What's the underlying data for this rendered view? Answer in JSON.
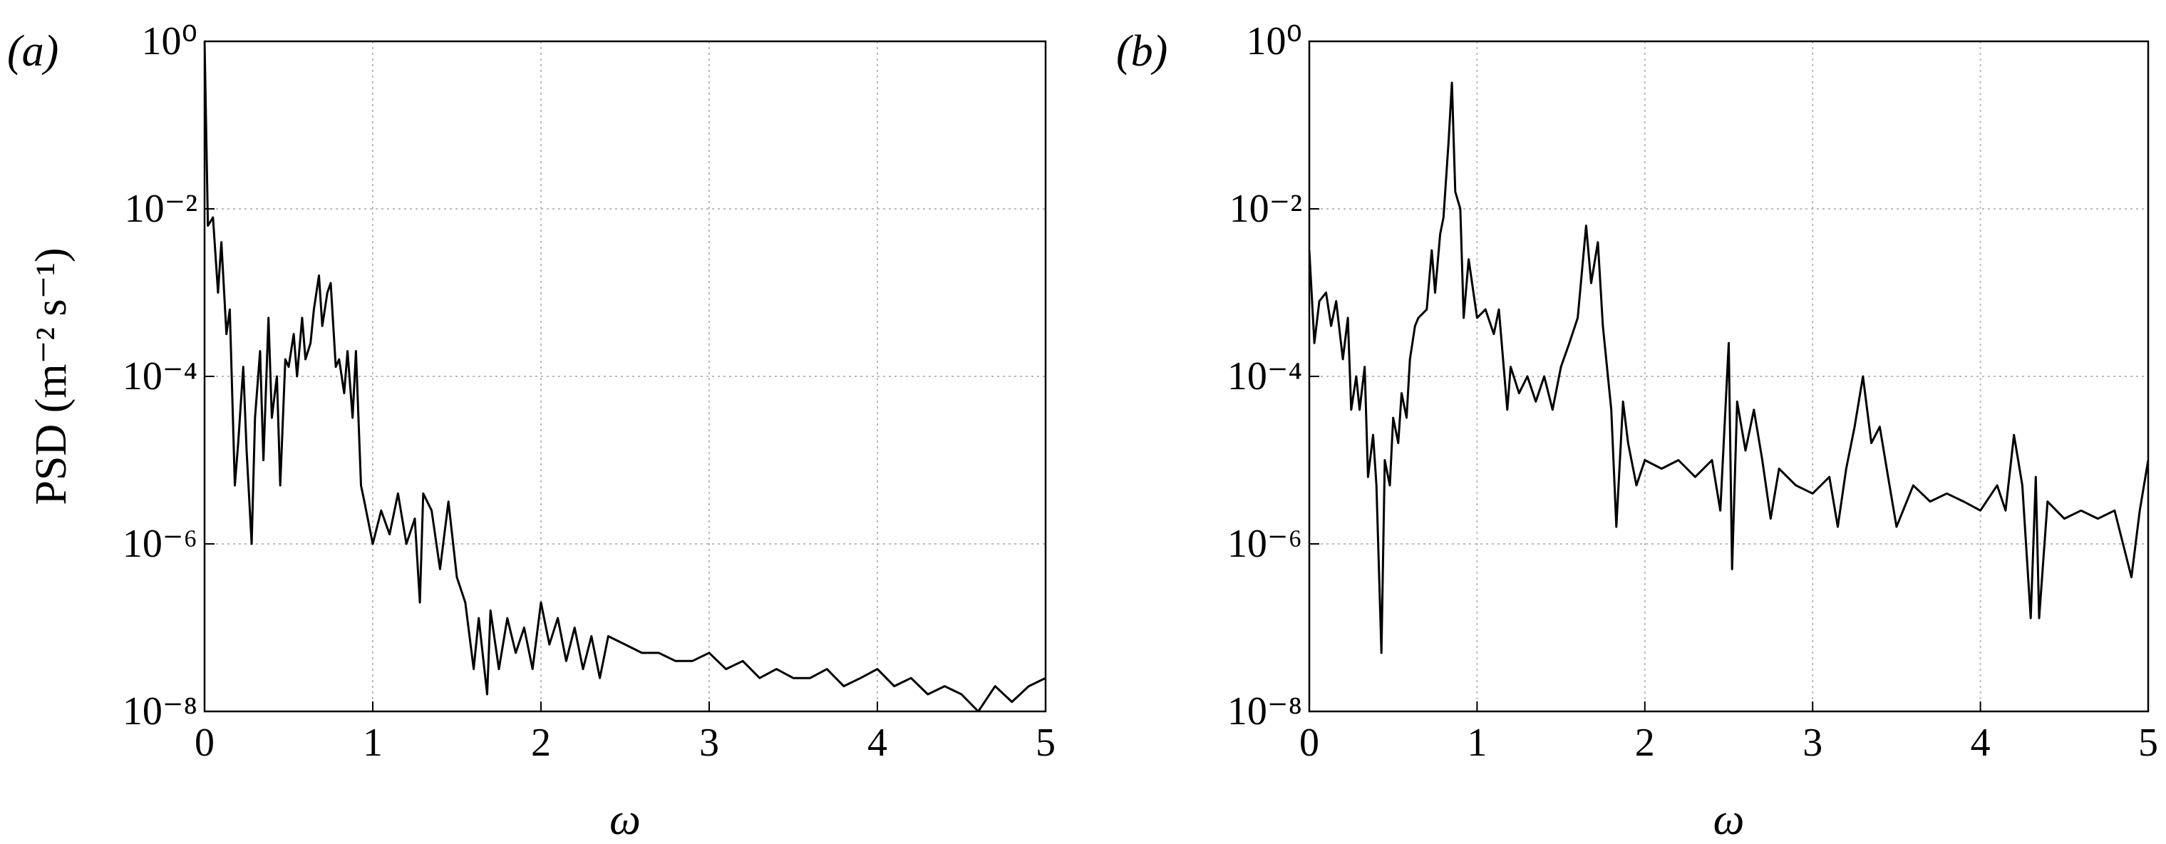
{
  "chart_data": [
    {
      "type": "line",
      "label": "(a)",
      "xlabel": "ω",
      "ylabel": "PSD (m⁻² s⁻¹)",
      "yscale": "log",
      "grid": true,
      "color": "#000000",
      "xlim": [
        0,
        5
      ],
      "xticks": [
        0,
        1,
        2,
        3,
        4,
        5
      ],
      "ylim": [
        1e-08,
        1
      ],
      "yticks": [
        {
          "value": 1e-08,
          "label": "10⁻⁸"
        },
        {
          "value": 1e-06,
          "label": "10⁻⁶"
        },
        {
          "value": 0.0001,
          "label": "10⁻⁴"
        },
        {
          "value": 0.01,
          "label": "10⁻²"
        },
        {
          "value": 1,
          "label": "10⁰"
        }
      ],
      "x": [
        0,
        0.02,
        0.05,
        0.08,
        0.1,
        0.13,
        0.15,
        0.18,
        0.2,
        0.23,
        0.25,
        0.28,
        0.3,
        0.33,
        0.35,
        0.38,
        0.4,
        0.43,
        0.45,
        0.48,
        0.5,
        0.53,
        0.55,
        0.58,
        0.6,
        0.63,
        0.65,
        0.68,
        0.7,
        0.73,
        0.75,
        0.78,
        0.8,
        0.83,
        0.85,
        0.88,
        0.9,
        0.93,
        0.95,
        1.0,
        1.05,
        1.1,
        1.15,
        1.2,
        1.25,
        1.28,
        1.3,
        1.35,
        1.4,
        1.45,
        1.5,
        1.55,
        1.6,
        1.63,
        1.68,
        1.7,
        1.75,
        1.8,
        1.85,
        1.9,
        1.95,
        2.0,
        2.05,
        2.1,
        2.15,
        2.2,
        2.25,
        2.3,
        2.35,
        2.4,
        2.5,
        2.6,
        2.7,
        2.8,
        2.9,
        3.0,
        3.1,
        3.2,
        3.3,
        3.4,
        3.5,
        3.6,
        3.7,
        3.8,
        3.9,
        4.0,
        4.1,
        4.2,
        4.3,
        4.4,
        4.5,
        4.6,
        4.7,
        4.8,
        4.9,
        5.0
      ],
      "values": [
        1,
        0.0063,
        0.0079,
        0.001,
        0.004,
        0.00032,
        0.00063,
        5e-06,
        1.6e-05,
        0.00013,
        1.3e-05,
        1e-06,
        3.2e-05,
        0.0002,
        1e-05,
        0.0005,
        3.2e-05,
        0.0001,
        5e-06,
        0.00016,
        0.00013,
        0.00032,
        0.0001,
        0.0005,
        0.00016,
        0.00025,
        0.00063,
        0.0016,
        0.0004,
        0.001,
        0.0013,
        0.00013,
        0.00016,
        6.3e-05,
        0.0002,
        3.2e-05,
        0.0002,
        5e-06,
        3.2e-06,
        1e-06,
        2.5e-06,
        1.3e-06,
        4e-06,
        1e-06,
        2e-06,
        2e-07,
        4e-06,
        2.5e-06,
        5e-07,
        3.2e-06,
        4e-07,
        2e-07,
        3.2e-08,
        1.3e-07,
        1.6e-08,
        1.6e-07,
        3.2e-08,
        1.3e-07,
        5e-08,
        1e-07,
        3.2e-08,
        2e-07,
        6.3e-08,
        1.3e-07,
        4e-08,
        1e-07,
        3.2e-08,
        7.9e-08,
        2.5e-08,
        7.9e-08,
        6.3e-08,
        5e-08,
        5e-08,
        4e-08,
        4e-08,
        5e-08,
        3.2e-08,
        4e-08,
        2.5e-08,
        3.2e-08,
        2.5e-08,
        2.5e-08,
        3.2e-08,
        2e-08,
        2.5e-08,
        3.2e-08,
        2e-08,
        2.5e-08,
        1.6e-08,
        2e-08,
        1.6e-08,
        1e-08,
        2e-08,
        1.3e-08,
        2e-08,
        2.5e-08
      ]
    },
    {
      "type": "line",
      "label": "(b)",
      "xlabel": "ω",
      "yscale": "log",
      "grid": true,
      "color": "#000000",
      "xlim": [
        0,
        5
      ],
      "xticks": [
        0,
        1,
        2,
        3,
        4,
        5
      ],
      "ylim": [
        1e-08,
        1
      ],
      "yticks": [
        {
          "value": 1e-08,
          "label": "10⁻⁸"
        },
        {
          "value": 1e-06,
          "label": "10⁻⁶"
        },
        {
          "value": 0.0001,
          "label": "10⁻⁴"
        },
        {
          "value": 0.01,
          "label": "10⁻²"
        },
        {
          "value": 1,
          "label": "10⁰"
        }
      ],
      "x": [
        0,
        0.03,
        0.06,
        0.1,
        0.13,
        0.16,
        0.2,
        0.23,
        0.25,
        0.28,
        0.3,
        0.33,
        0.35,
        0.38,
        0.4,
        0.43,
        0.45,
        0.48,
        0.5,
        0.53,
        0.55,
        0.58,
        0.6,
        0.63,
        0.65,
        0.7,
        0.73,
        0.75,
        0.78,
        0.8,
        0.83,
        0.85,
        0.87,
        0.9,
        0.92,
        0.95,
        1.0,
        1.05,
        1.1,
        1.13,
        1.18,
        1.2,
        1.25,
        1.3,
        1.35,
        1.4,
        1.45,
        1.5,
        1.55,
        1.6,
        1.65,
        1.68,
        1.72,
        1.75,
        1.8,
        1.83,
        1.87,
        1.9,
        1.95,
        2.0,
        2.1,
        2.2,
        2.3,
        2.4,
        2.45,
        2.5,
        2.52,
        2.55,
        2.6,
        2.65,
        2.7,
        2.75,
        2.8,
        2.9,
        3.0,
        3.1,
        3.15,
        3.2,
        3.25,
        3.3,
        3.35,
        3.4,
        3.45,
        3.5,
        3.6,
        3.7,
        3.8,
        3.9,
        4.0,
        4.1,
        4.15,
        4.2,
        4.25,
        4.3,
        4.33,
        4.35,
        4.4,
        4.5,
        4.6,
        4.7,
        4.8,
        4.9,
        4.95,
        5.0
      ],
      "values": [
        0.0032,
        0.00025,
        0.00079,
        0.001,
        0.0004,
        0.00079,
        0.00016,
        0.0005,
        4e-05,
        0.0001,
        4e-05,
        0.00013,
        6.3e-06,
        2e-05,
        5e-06,
        5e-08,
        1e-05,
        5e-06,
        3.2e-05,
        1.6e-05,
        6.3e-05,
        3.2e-05,
        0.00016,
        0.0004,
        0.0005,
        0.00063,
        0.0032,
        0.001,
        0.005,
        0.0079,
        0.063,
        0.32,
        0.016,
        0.01,
        0.0005,
        0.0025,
        0.0005,
        0.00063,
        0.00032,
        0.00063,
        4e-05,
        0.00013,
        6.3e-05,
        0.0001,
        5e-05,
        0.0001,
        4e-05,
        0.00013,
        0.00025,
        0.0005,
        0.0063,
        0.0013,
        0.004,
        0.0004,
        4e-05,
        1.6e-06,
        5e-05,
        1.6e-05,
        5e-06,
        1e-05,
        7.9e-06,
        1e-05,
        6.3e-06,
        1e-05,
        2.5e-06,
        0.00025,
        5e-07,
        5e-05,
        1.3e-05,
        4e-05,
        1e-05,
        2e-06,
        7.9e-06,
        5e-06,
        4e-06,
        6.3e-06,
        1.6e-06,
        7.9e-06,
        2.5e-05,
        0.0001,
        1.6e-05,
        2.5e-05,
        6.3e-06,
        1.6e-06,
        5e-06,
        3.2e-06,
        4e-06,
        3.2e-06,
        2.5e-06,
        5e-06,
        2.5e-06,
        2e-05,
        5e-06,
        1.3e-07,
        6.3e-06,
        1.3e-07,
        3.2e-06,
        2e-06,
        2.5e-06,
        2e-06,
        2.5e-06,
        4e-07,
        2.5e-06,
        1e-05
      ]
    }
  ]
}
